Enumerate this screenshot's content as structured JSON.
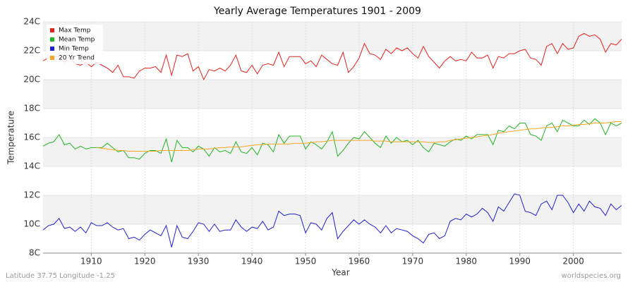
{
  "chart_data": {
    "type": "line",
    "title": "Yearly Average Temperatures 1901 - 2009",
    "xlabel": "Year",
    "ylabel": "Temperature",
    "footer_left": "Latitude 37.75 Longitude -1.25",
    "footer_right": "worldspecies.org",
    "legend": "top-left",
    "grid": true,
    "x": [
      1901,
      1902,
      1903,
      1904,
      1905,
      1906,
      1907,
      1908,
      1909,
      1910,
      1911,
      1912,
      1913,
      1914,
      1915,
      1916,
      1917,
      1918,
      1919,
      1920,
      1921,
      1922,
      1923,
      1924,
      1925,
      1926,
      1927,
      1928,
      1929,
      1930,
      1931,
      1932,
      1933,
      1934,
      1935,
      1936,
      1937,
      1938,
      1939,
      1940,
      1941,
      1942,
      1943,
      1944,
      1945,
      1946,
      1947,
      1948,
      1949,
      1950,
      1951,
      1952,
      1953,
      1954,
      1955,
      1956,
      1957,
      1958,
      1959,
      1960,
      1961,
      1962,
      1963,
      1964,
      1965,
      1966,
      1967,
      1968,
      1969,
      1970,
      1971,
      1972,
      1973,
      1974,
      1975,
      1976,
      1977,
      1978,
      1979,
      1980,
      1981,
      1982,
      1983,
      1984,
      1985,
      1986,
      1987,
      1988,
      1989,
      1990,
      1991,
      1992,
      1993,
      1994,
      1995,
      1996,
      1997,
      1998,
      1999,
      2000,
      2001,
      2002,
      2003,
      2004,
      2005,
      2006,
      2007,
      2008,
      2009
    ],
    "xlim": [
      1901,
      2009
    ],
    "xticks": [
      1910,
      1920,
      1930,
      1940,
      1950,
      1960,
      1970,
      1980,
      1990,
      2000
    ],
    "ylim": [
      8,
      24
    ],
    "yticks": [
      {
        "value": 8,
        "label": "8C"
      },
      {
        "value": 10,
        "label": "10C"
      },
      {
        "value": 12,
        "label": "12C"
      },
      {
        "value": 14,
        "label": "14C"
      },
      {
        "value": 16,
        "label": "16C"
      },
      {
        "value": 18,
        "label": "18C"
      },
      {
        "value": 20,
        "label": "20C"
      },
      {
        "value": 22,
        "label": "22C"
      },
      {
        "value": 24,
        "label": "24C"
      }
    ],
    "series": [
      {
        "name": "Max Temp",
        "color": "#e8201c",
        "values": [
          21.3,
          21.5,
          21.6,
          21.6,
          21.2,
          21.6,
          21.1,
          21.0,
          21.2,
          20.9,
          21.2,
          21.0,
          20.8,
          20.5,
          21.0,
          20.2,
          20.2,
          20.1,
          20.6,
          20.8,
          20.8,
          20.9,
          20.5,
          21.7,
          20.3,
          21.7,
          21.6,
          21.8,
          20.6,
          20.9,
          20.0,
          20.7,
          20.6,
          20.8,
          20.6,
          21.0,
          21.7,
          20.6,
          20.5,
          21.0,
          20.4,
          21.0,
          21.1,
          21.0,
          21.9,
          20.9,
          21.6,
          21.6,
          21.6,
          21.1,
          21.3,
          20.9,
          21.7,
          21.4,
          21.1,
          21.0,
          21.9,
          20.5,
          20.9,
          21.5,
          22.5,
          21.8,
          21.7,
          21.4,
          22.1,
          21.8,
          22.2,
          22.0,
          22.2,
          21.8,
          21.5,
          22.3,
          21.6,
          21.2,
          20.8,
          21.3,
          21.6,
          21.3,
          21.4,
          21.3,
          21.9,
          21.5,
          21.5,
          21.7,
          20.8,
          21.6,
          21.5,
          21.8,
          21.8,
          22.0,
          22.1,
          21.5,
          21.4,
          21.0,
          22.3,
          22.5,
          21.8,
          22.5,
          22.1,
          22.2,
          23.0,
          23.2,
          23.0,
          23.1,
          22.8,
          21.9,
          22.5,
          22.4,
          22.8
        ]
      },
      {
        "name": "Mean Temp",
        "color": "#22b422",
        "values": [
          15.4,
          15.6,
          15.7,
          16.2,
          15.5,
          15.6,
          15.2,
          15.4,
          15.2,
          15.3,
          15.3,
          15.3,
          15.6,
          15.3,
          15.0,
          15.1,
          14.6,
          14.6,
          14.5,
          14.9,
          15.1,
          15.1,
          14.9,
          15.9,
          14.3,
          15.8,
          15.3,
          15.3,
          15.0,
          15.4,
          15.2,
          14.7,
          15.3,
          15.0,
          15.1,
          14.9,
          15.7,
          15.0,
          14.9,
          15.3,
          14.8,
          15.6,
          15.5,
          15.0,
          16.2,
          15.6,
          16.1,
          16.1,
          16.1,
          15.2,
          15.7,
          15.5,
          15.2,
          15.7,
          16.4,
          14.7,
          15.1,
          15.6,
          16.0,
          15.9,
          16.4,
          16.0,
          15.6,
          15.3,
          16.1,
          15.6,
          16.0,
          15.7,
          15.8,
          15.5,
          15.8,
          15.3,
          15.0,
          15.6,
          15.5,
          15.4,
          15.7,
          15.9,
          15.8,
          16.1,
          15.9,
          16.2,
          16.2,
          16.2,
          15.5,
          16.5,
          16.4,
          16.8,
          16.6,
          17.0,
          17.0,
          16.2,
          16.1,
          15.8,
          16.8,
          17.0,
          16.4,
          17.2,
          17.0,
          16.8,
          16.8,
          17.2,
          16.9,
          17.3,
          17.0,
          16.2,
          17.0,
          16.8,
          17.0
        ]
      },
      {
        "name": "Min Temp",
        "color": "#2020d0",
        "values": [
          9.6,
          9.9,
          10.0,
          10.4,
          9.7,
          9.8,
          9.5,
          9.8,
          9.4,
          10.1,
          9.9,
          9.9,
          10.1,
          9.8,
          9.6,
          9.7,
          9.0,
          9.1,
          8.9,
          9.3,
          9.6,
          9.4,
          9.2,
          9.9,
          8.4,
          9.9,
          9.1,
          9.0,
          9.5,
          10.1,
          10.0,
          9.5,
          10.0,
          9.5,
          9.6,
          9.6,
          10.3,
          9.8,
          9.5,
          9.8,
          9.7,
          10.2,
          9.6,
          9.8,
          10.9,
          10.6,
          10.7,
          10.7,
          10.6,
          9.4,
          10.1,
          10.0,
          9.6,
          10.4,
          10.8,
          9.0,
          9.5,
          9.9,
          10.3,
          10.0,
          10.3,
          10.0,
          9.8,
          9.4,
          9.9,
          9.4,
          9.7,
          9.6,
          9.5,
          9.2,
          9.0,
          8.7,
          9.3,
          9.4,
          9.0,
          9.2,
          10.2,
          10.4,
          10.3,
          10.7,
          10.5,
          10.7,
          11.1,
          10.8,
          10.2,
          11.2,
          10.9,
          11.5,
          12.1,
          12.0,
          10.9,
          10.8,
          10.6,
          11.4,
          11.6,
          11.0,
          12.0,
          12.0,
          11.5,
          10.8,
          11.4,
          10.9,
          11.6,
          11.2,
          11.1,
          10.6,
          11.4,
          11.0,
          11.3
        ]
      },
      {
        "name": "20 Yr Trend",
        "color": "#f5a623",
        "values": [
          null,
          null,
          null,
          null,
          null,
          null,
          null,
          null,
          null,
          null,
          15.3,
          15.25,
          15.2,
          15.15,
          15.1,
          15.1,
          15.05,
          15.05,
          15.05,
          15.05,
          15.05,
          15.05,
          15.1,
          15.1,
          15.1,
          15.1,
          15.1,
          15.1,
          15.15,
          15.2,
          15.2,
          15.2,
          15.25,
          15.3,
          15.3,
          15.35,
          15.35,
          15.35,
          15.4,
          15.45,
          15.5,
          15.5,
          15.55,
          15.55,
          15.55,
          15.55,
          15.55,
          15.6,
          15.6,
          15.6,
          15.65,
          15.7,
          15.7,
          15.75,
          15.8,
          15.8,
          15.8,
          15.8,
          15.8,
          15.8,
          15.8,
          15.8,
          15.75,
          15.75,
          15.75,
          15.7,
          15.7,
          15.7,
          15.7,
          15.7,
          15.7,
          15.7,
          15.65,
          15.65,
          15.7,
          15.7,
          15.8,
          15.85,
          15.9,
          15.95,
          16.0,
          16.05,
          16.1,
          16.15,
          16.2,
          16.3,
          16.35,
          16.4,
          16.45,
          16.5,
          16.55,
          16.6,
          16.6,
          16.65,
          16.7,
          16.7,
          16.75,
          16.8,
          16.8,
          16.85,
          16.9,
          16.9,
          16.95,
          17.0,
          17.0,
          17.0,
          17.05,
          17.1,
          17.1
        ]
      }
    ]
  }
}
